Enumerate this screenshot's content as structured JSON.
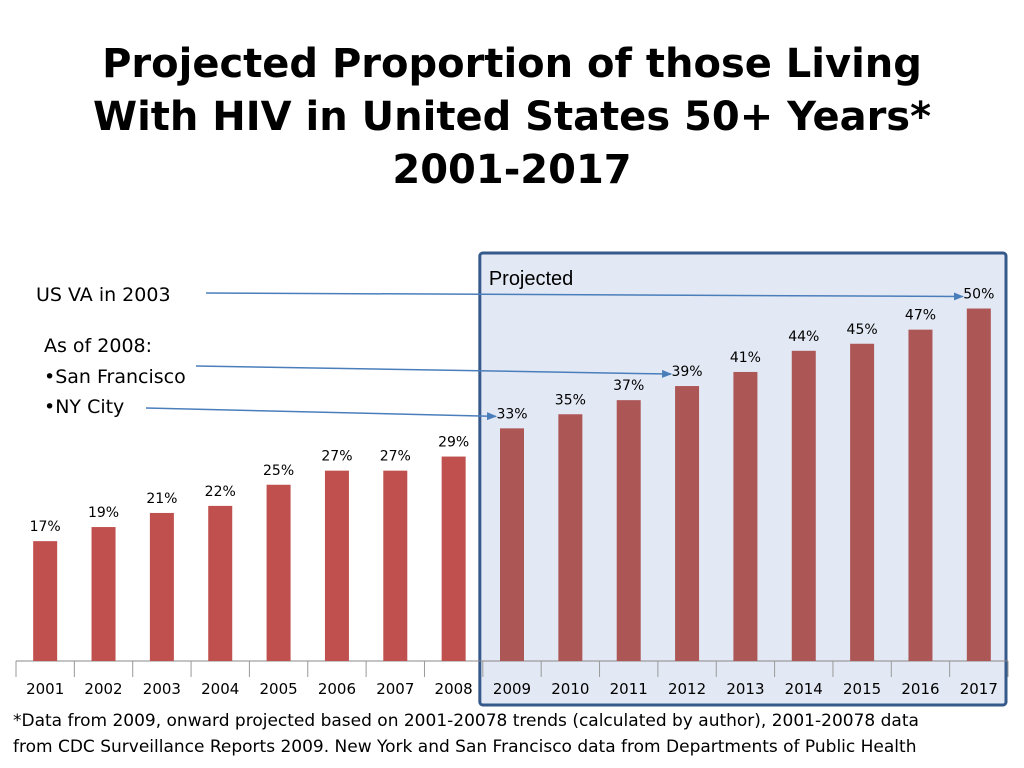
{
  "title": {
    "lines": [
      "Projected Proportion of those Living",
      "With HIV in United States 50+ Years*",
      "2001-2017"
    ]
  },
  "chart_data": {
    "type": "bar",
    "categories": [
      "2001",
      "2002",
      "2003",
      "2004",
      "2005",
      "2006",
      "2007",
      "2008",
      "2009",
      "2010",
      "2011",
      "2012",
      "2013",
      "2014",
      "2015",
      "2016",
      "2017"
    ],
    "values": [
      17,
      19,
      21,
      22,
      25,
      27,
      27,
      29,
      33,
      35,
      37,
      39,
      41,
      44,
      45,
      47,
      50
    ],
    "data_labels": [
      "17%",
      "19%",
      "21%",
      "22%",
      "25%",
      "27%",
      "27%",
      "29%",
      "33%",
      "35%",
      "37%",
      "39%",
      "41%",
      "44%",
      "45%",
      "47%",
      "50%"
    ],
    "ylim": [
      0,
      60
    ],
    "grid": false,
    "colors": {
      "actual": "#c0504d",
      "projected": "#ad5656",
      "projected_region_fill": "#e3e9f4",
      "projected_region_border": "#35598a",
      "arrow": "#4a7ebb"
    },
    "projected_region": {
      "label": "Projected",
      "from": "2009",
      "to": "2017"
    }
  },
  "annotations": {
    "us_va": {
      "text": "US VA in 2003",
      "target_value": 50,
      "target_category": "2017"
    },
    "as_of_2008": {
      "heading": "As of 2008:",
      "items": [
        {
          "text": "•San Francisco",
          "target_value": 39,
          "target_category": "2012"
        },
        {
          "text": "•NY City",
          "target_value": 33,
          "target_category": "2009"
        }
      ]
    }
  },
  "footnote": {
    "lines": [
      "*Data from 2009, onward projected based on 2001-20078 trends (calculated by author), 2001-20078 data",
      "from CDC Surveillance Reports 2009.  New York and San Francisco data from Departments of Public Health"
    ]
  }
}
